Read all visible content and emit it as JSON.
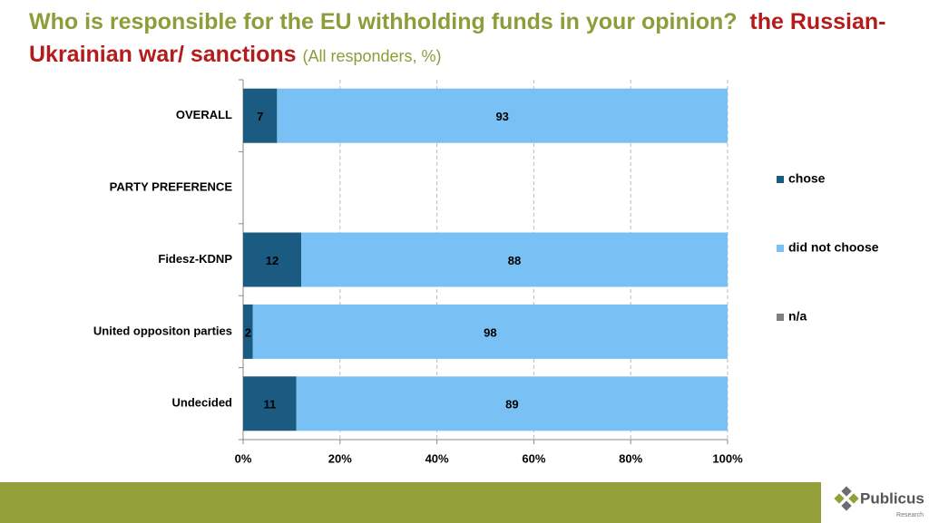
{
  "chart_data": {
    "type": "stacked_barh",
    "title": "Who is responsible for the EU withholding funds in your opinion?",
    "title_highlight": "the Russian- Ukrainian war/ sanctions",
    "subtitle": "(All responders, %)",
    "categories": [
      "OVERALL",
      "PARTY PREFERENCE",
      "Fidesz-KDNP",
      "United oppositon parties",
      "Undecided"
    ],
    "series": [
      {
        "name": "chose",
        "color": "#1b5b82",
        "values": [
          7,
          null,
          12,
          2,
          11
        ]
      },
      {
        "name": "did not choose",
        "color": "#79c1f4",
        "values": [
          93,
          null,
          88,
          98,
          89
        ]
      },
      {
        "name": "n/a",
        "color": "#7f7f7f",
        "values": [
          0,
          null,
          0,
          0,
          0
        ]
      }
    ],
    "xlim": [
      0,
      100
    ],
    "xticks": [
      {
        "value": 0,
        "label": "0%"
      },
      {
        "value": 20,
        "label": "20%"
      },
      {
        "value": 40,
        "label": "40%"
      },
      {
        "value": 60,
        "label": "60%"
      },
      {
        "value": 80,
        "label": "80%"
      },
      {
        "value": 100,
        "label": "100%"
      }
    ],
    "grid": true
  },
  "footer": {
    "logo": "Publicus",
    "logo_sub": "Research"
  }
}
